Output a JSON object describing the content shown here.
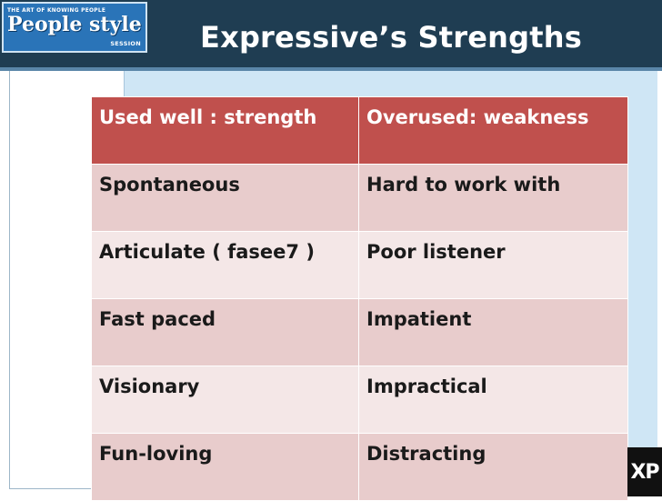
{
  "logo": {
    "tagline": "THE ART OF KNOWING PEOPLE",
    "name": "People style",
    "subtitle": "SESSION"
  },
  "title": "Expressive’s Strengths",
  "table": {
    "headers": [
      "Used well : strength",
      "Overused: weakness"
    ],
    "rows": [
      [
        "Spontaneous",
        "Hard to work with"
      ],
      [
        "Articulate ( fasee7 )",
        "Poor listener"
      ],
      [
        "Fast paced",
        "Impatient"
      ],
      [
        "Visionary",
        "Impractical"
      ],
      [
        "Fun-loving",
        "Distracting"
      ]
    ]
  },
  "corner_badge": "XP",
  "colors": {
    "header_bg": "#1f3d52",
    "table_header": "#c0504d",
    "row_odd": "#e8cccc",
    "row_even": "#f4e7e7",
    "panel": "#cfe6f5"
  }
}
